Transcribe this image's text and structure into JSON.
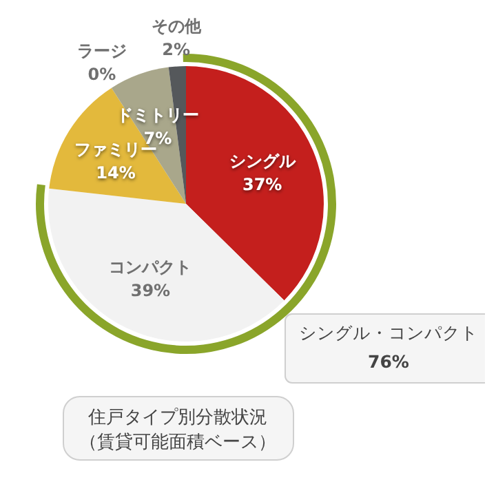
{
  "chart_data": {
    "type": "pie",
    "title": "住戸タイプ別分散状況",
    "subtitle": "（賃貸可能面積ベース）",
    "categories": [
      "シングル",
      "コンパクト",
      "ファミリー",
      "ラージ",
      "ドミトリー",
      "その他"
    ],
    "values": [
      37,
      39,
      14,
      0,
      7,
      2
    ],
    "colors": [
      "#c41f1d",
      "#f2f2f2",
      "#e3b93c",
      "#c9c9c9",
      "#a9a78b",
      "#55585b"
    ],
    "value_labels": [
      "37%",
      "39%",
      "14%",
      "0%",
      "7%",
      "2%"
    ],
    "annotations": [
      "シングル・コンパクト",
      "76%"
    ]
  }
}
